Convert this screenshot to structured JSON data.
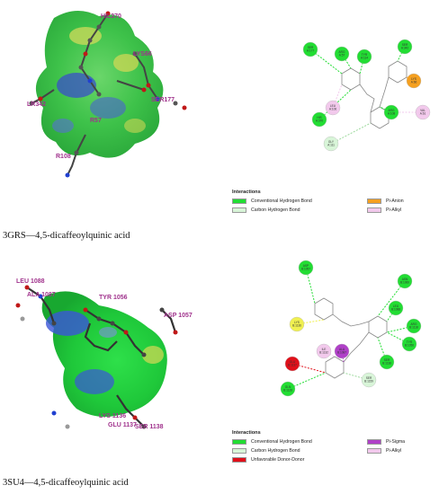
{
  "panel1": {
    "caption": "3GRS—4,5-dicaffeoylquinic acid",
    "residues_3d": [
      "HIL370",
      "LYS66",
      "SER177",
      "LR342",
      "R57",
      "R108"
    ],
    "legend": {
      "title": "Interactions",
      "items": [
        {
          "label": "Conventional Hydrogen Bond",
          "color": "#22dd33"
        },
        {
          "label": "Carbon Hydrogen Bond",
          "color": "#d8f5d8"
        },
        {
          "label": "Pi-Anion",
          "color": "#f5a020"
        },
        {
          "label": "Pi-Alkyl",
          "color": "#f2c9ec"
        }
      ]
    },
    "nodes_2d": [
      {
        "label": "SER A:177",
        "color": "#22dd33"
      },
      {
        "label": "ARG A:57",
        "color": "#22dd33"
      },
      {
        "label": "TYR A:114",
        "color": "#22dd33"
      },
      {
        "label": "LYS A:66",
        "color": "#f5a020"
      },
      {
        "label": "LEU A:106",
        "color": "#f2c9ec"
      },
      {
        "label": "HIS A:370",
        "color": "#22dd33"
      },
      {
        "label": "ARG A:108",
        "color": "#22dd33"
      },
      {
        "label": "GLY A:111",
        "color": "#d8f5d8"
      },
      {
        "label": "VAL A:61",
        "color": "#f2c9ec"
      },
      {
        "label": "SER A:342",
        "color": "#22dd33"
      }
    ]
  },
  "panel2": {
    "caption": "3SU4—4,5-dicaffeoylquinic acid",
    "residues_3d": [
      "TYR 1056",
      "ASP 1057",
      "SER 1138",
      "LYS 1136",
      "GLU 1137",
      "LEU 1088",
      "ALA 1087"
    ],
    "legend": {
      "title": "Interactions",
      "items": [
        {
          "label": "Conventional Hydrogen Bond",
          "color": "#22dd33"
        },
        {
          "label": "Carbon Hydrogen Bond",
          "color": "#d8f5d8"
        },
        {
          "label": "Unfavorable Donor-Donor",
          "color": "#e0101a"
        },
        {
          "label": "Pi-Sigma",
          "color": "#b040c8"
        },
        {
          "label": "Pi-Alkyl",
          "color": "#f2c9ec"
        }
      ]
    },
    "nodes_2d": [
      {
        "label": "ASP B:1057",
        "color": "#22dd33"
      },
      {
        "label": "LYS B:1136",
        "color": "#f0f050"
      },
      {
        "label": "ASN B:1060",
        "color": "#22dd33"
      },
      {
        "label": "ARG B:1118",
        "color": "#22dd33"
      },
      {
        "label": "ILE B:1132",
        "color": "#f2c9ec"
      },
      {
        "label": "ALA B:1087",
        "color": "#b040c8"
      },
      {
        "label": "GLU B:1137",
        "color": "#e0101a"
      },
      {
        "label": "GLN B:1128",
        "color": "#22dd33"
      },
      {
        "label": "SER B:1159",
        "color": "#d8f5d8"
      },
      {
        "label": "TYR B:1056",
        "color": "#22dd33"
      },
      {
        "label": "SER B:1138",
        "color": "#22dd33"
      },
      {
        "label": "LEU B:1088",
        "color": "#22dd33"
      }
    ]
  }
}
